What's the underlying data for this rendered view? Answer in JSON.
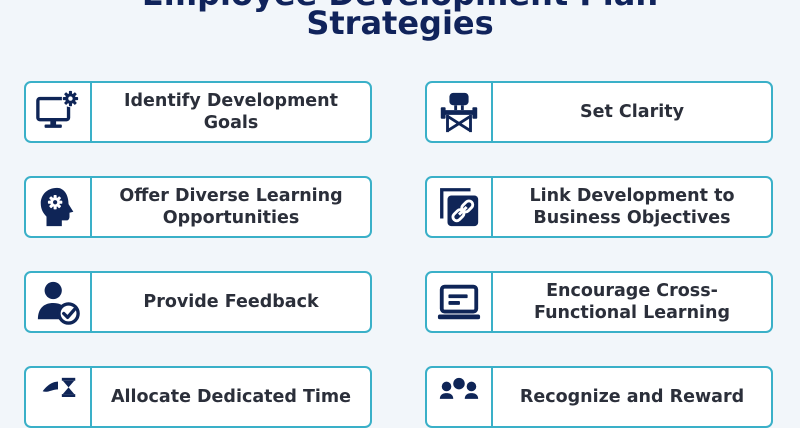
{
  "header": {
    "title_line1": "Employee Development Plan",
    "title_line2": "Strategies"
  },
  "colors": {
    "title": "#10235b",
    "icon": "#0f2557",
    "border": "#3ab0c8",
    "text": "#2b2f3a",
    "background": "#f2f6fa"
  },
  "cards": [
    {
      "label": "Identify Development Goals",
      "icon": "monitor-gear-icon"
    },
    {
      "label": "Set Clarity",
      "icon": "director-chair-icon"
    },
    {
      "label": "Offer Diverse Learning Opportunities",
      "icon": "head-gear-icon"
    },
    {
      "label": "Link Development to Business Objectives",
      "icon": "chain-link-icon"
    },
    {
      "label": "Provide Feedback",
      "icon": "user-check-icon"
    },
    {
      "label": "Encourage Cross-Functional Learning",
      "icon": "laptop-icon"
    },
    {
      "label": "Allocate Dedicated Time",
      "icon": "hourglass-icon"
    },
    {
      "label": "Recognize and Reward",
      "icon": "team-icon"
    }
  ]
}
